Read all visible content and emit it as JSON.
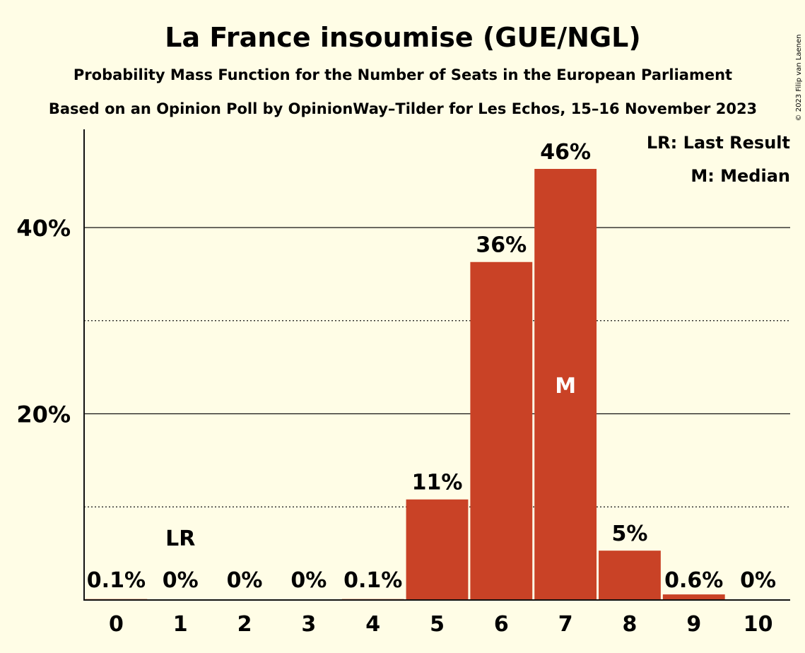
{
  "title": "La France insoumise (GUE/NGL)",
  "subtitle": "Probability Mass Function for the Number of Seats in the European Parliament",
  "source": "Based on an Opinion Poll by OpinionWay–Tilder for Les Echos, 15–16 November 2023",
  "copyright": "© 2023 Filip van Laenen",
  "legend": {
    "last_result": "LR: Last Result",
    "median": "M: Median"
  },
  "colors": {
    "bar": "#c94226",
    "background": "#fffde6"
  },
  "chart_data": {
    "type": "bar",
    "categories": [
      "0",
      "1",
      "2",
      "3",
      "4",
      "5",
      "6",
      "7",
      "8",
      "9",
      "10"
    ],
    "values": [
      0.1,
      0,
      0,
      0,
      0.1,
      10.8,
      36.3,
      46.3,
      5.3,
      0.6,
      0
    ],
    "value_labels": [
      "0.1%",
      "0%",
      "0%",
      "0%",
      "0.1%",
      "11%",
      "36%",
      "46%",
      "5%",
      "0.6%",
      "0%"
    ],
    "y_ticks": [
      {
        "value": 20,
        "label": "20%"
      },
      {
        "value": 40,
        "label": "40%"
      }
    ],
    "minor_gridlines": [
      10,
      30
    ],
    "ylim": [
      0,
      50
    ],
    "last_result_seats": 1,
    "last_result_marker": "LR",
    "median_seats": 7,
    "median_marker": "M",
    "legend_position": "top-right"
  }
}
